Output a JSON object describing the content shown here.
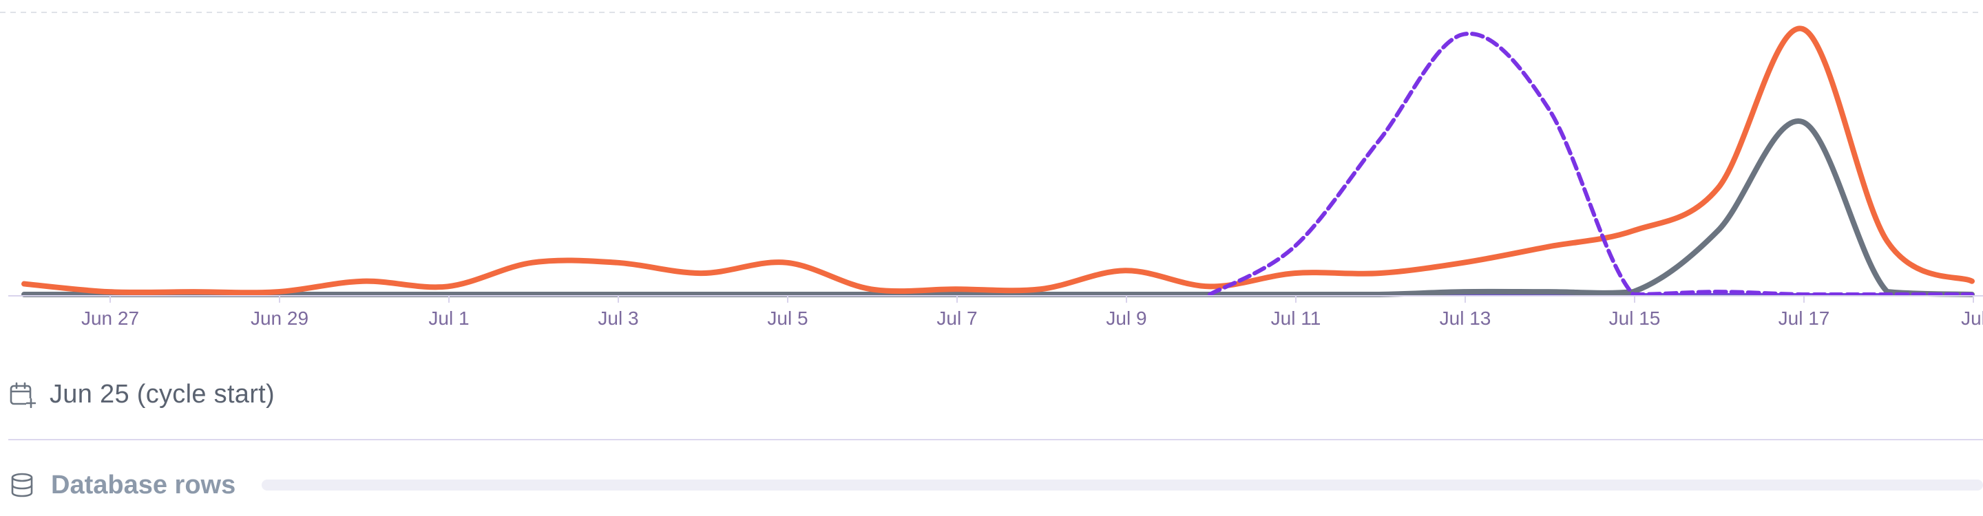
{
  "colors": {
    "database_rows": "#f26a3f",
    "secondary_series": "#6b7480",
    "projection": "#7a33e4",
    "baseline": "#6d4fd0",
    "tick_text": "#7c6a9e"
  },
  "chart_data": {
    "type": "line",
    "x_tick_labels": [
      "Jun 27",
      "Jun 29",
      "Jul 1",
      "Jul 3",
      "Jul 5",
      "Jul 7",
      "Jul 9",
      "Jul 11",
      "Jul 13",
      "Jul 15",
      "Jul 17",
      "Jul"
    ],
    "x": [
      25,
      26,
      27,
      28,
      29,
      30,
      31,
      32,
      33,
      34,
      35,
      36,
      37,
      38,
      39,
      40,
      41,
      42,
      43,
      44,
      45,
      46,
      47,
      48
    ],
    "ylim": [
      0,
      100
    ],
    "grid": "top dashed line",
    "series": [
      {
        "color": "#f26a3f",
        "style": "solid",
        "values": [
          4,
          1,
          1,
          1,
          5,
          3,
          12,
          12,
          8,
          12,
          2,
          2,
          2,
          9,
          3,
          8,
          8,
          12,
          18,
          24,
          40,
          100,
          20,
          5
        ]
      },
      {
        "color": "#6b7480",
        "style": "solid",
        "values": [
          0,
          0,
          0,
          0,
          0,
          0,
          0,
          0,
          0,
          0,
          0,
          0,
          0,
          0,
          0,
          0,
          0,
          1,
          1,
          1,
          24,
          65,
          1,
          0
        ]
      },
      {
        "color": "#7a33e4",
        "style": "dashed",
        "values": [
          null,
          null,
          null,
          null,
          null,
          null,
          null,
          null,
          null,
          null,
          null,
          null,
          null,
          null,
          0,
          18,
          58,
          98,
          70,
          0,
          1,
          0,
          0,
          0
        ]
      },
      {
        "color": "#6d4fd0",
        "style": "solid-thin",
        "values": [
          0,
          0,
          0,
          0,
          0,
          0,
          0,
          0,
          0,
          0,
          0,
          0,
          0,
          0,
          0,
          0,
          0,
          0,
          0,
          0,
          0,
          0,
          0,
          0
        ]
      }
    ]
  },
  "cycle": {
    "icon": "calendar-plus-icon",
    "label": "Jun 25 (cycle start)"
  },
  "db": {
    "icon": "database-icon",
    "label": "Database rows"
  }
}
